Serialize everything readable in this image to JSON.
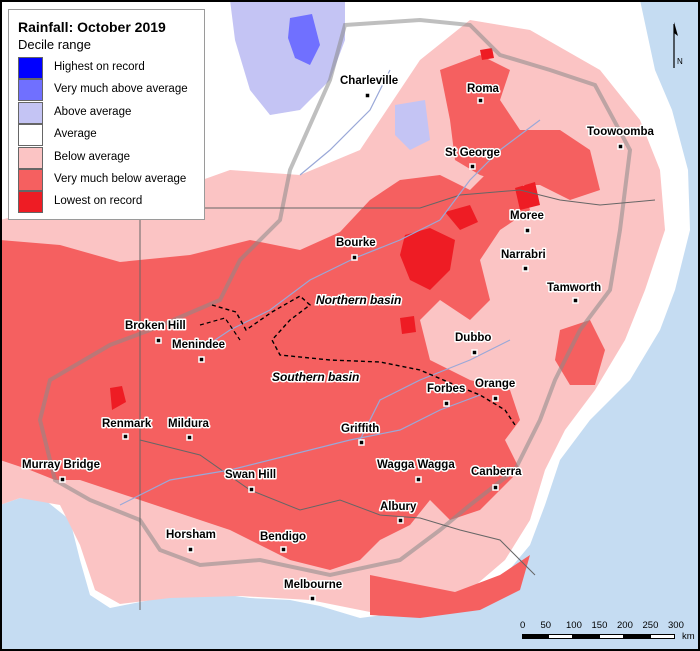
{
  "legend": {
    "title": "Rainfall: October 2019",
    "subtitle": "Decile range",
    "items": [
      {
        "label": "Highest on record",
        "color": "#0000ff"
      },
      {
        "label": "Very much above average",
        "color": "#7070ff"
      },
      {
        "label": "Above average",
        "color": "#c4c4f4"
      },
      {
        "label": "Average",
        "color": "#ffffff"
      },
      {
        "label": "Below average",
        "color": "#fbc4c4"
      },
      {
        "label": "Very much below average",
        "color": "#f56060"
      },
      {
        "label": "Lowest on record",
        "color": "#ee1c24"
      }
    ]
  },
  "basins": {
    "northern": "Northern basin",
    "southern": "Southern basin"
  },
  "towns": [
    {
      "name": "Charleville"
    },
    {
      "name": "Roma"
    },
    {
      "name": "Toowoomba"
    },
    {
      "name": "St George"
    },
    {
      "name": "Moree"
    },
    {
      "name": "Bourke"
    },
    {
      "name": "Narrabri"
    },
    {
      "name": "Tamworth"
    },
    {
      "name": "Broken Hill"
    },
    {
      "name": "Menindee"
    },
    {
      "name": "Dubbo"
    },
    {
      "name": "Forbes"
    },
    {
      "name": "Orange"
    },
    {
      "name": "Renmark"
    },
    {
      "name": "Mildura"
    },
    {
      "name": "Griffith"
    },
    {
      "name": "Murray Bridge"
    },
    {
      "name": "Swan Hill"
    },
    {
      "name": "Wagga Wagga"
    },
    {
      "name": "Canberra"
    },
    {
      "name": "Albury"
    },
    {
      "name": "Horsham"
    },
    {
      "name": "Bendigo"
    },
    {
      "name": "Melbourne"
    }
  ],
  "scale": {
    "ticks": [
      "0",
      "50",
      "100",
      "150",
      "200",
      "250",
      "300"
    ],
    "unit": "km"
  },
  "north_label": "N"
}
